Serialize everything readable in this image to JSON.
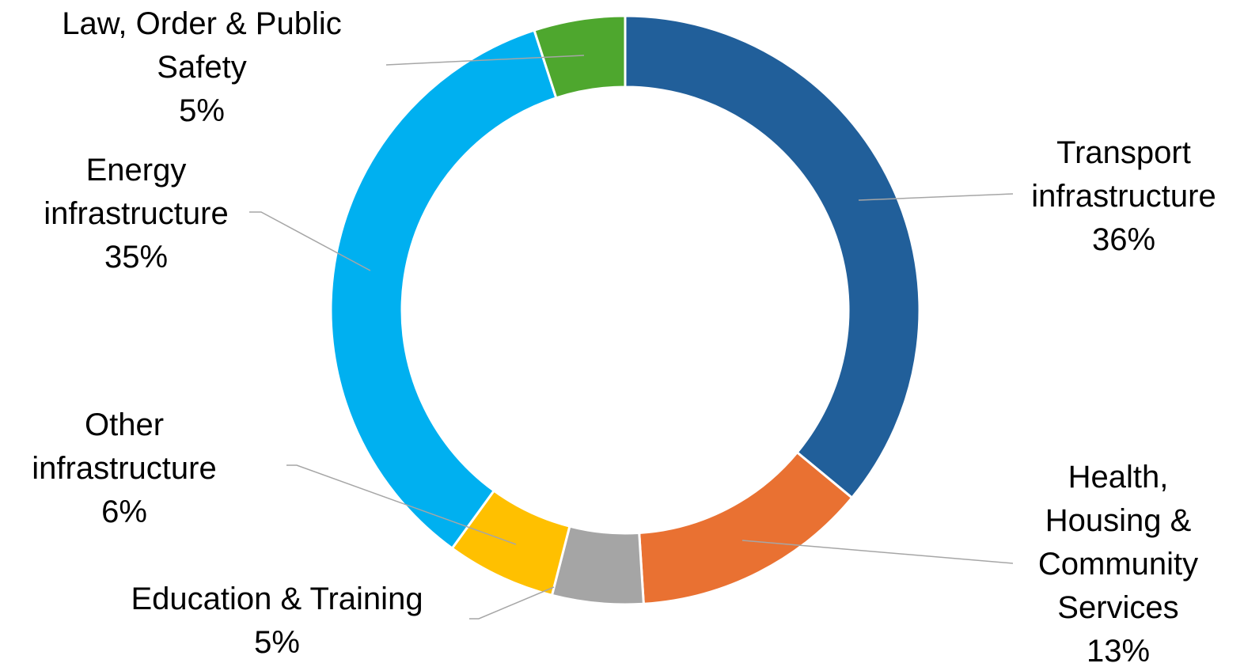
{
  "chart_data": {
    "type": "pie",
    "categories": [
      "Transport infrastructure",
      "Health, Housing & Community Services",
      "Education & Training",
      "Other infrastructure",
      "Energy infrastructure",
      "Law, Order & Public Safety"
    ],
    "values": [
      36,
      13,
      5,
      6,
      35,
      5
    ],
    "value_labels": [
      "36%",
      "13%",
      "5%",
      "6%",
      "35%",
      "5%"
    ],
    "colors": [
      "#215f9a",
      "#e97132",
      "#a5a5a5",
      "#ffc000",
      "#00b0f0",
      "#4ea72e"
    ]
  }
}
